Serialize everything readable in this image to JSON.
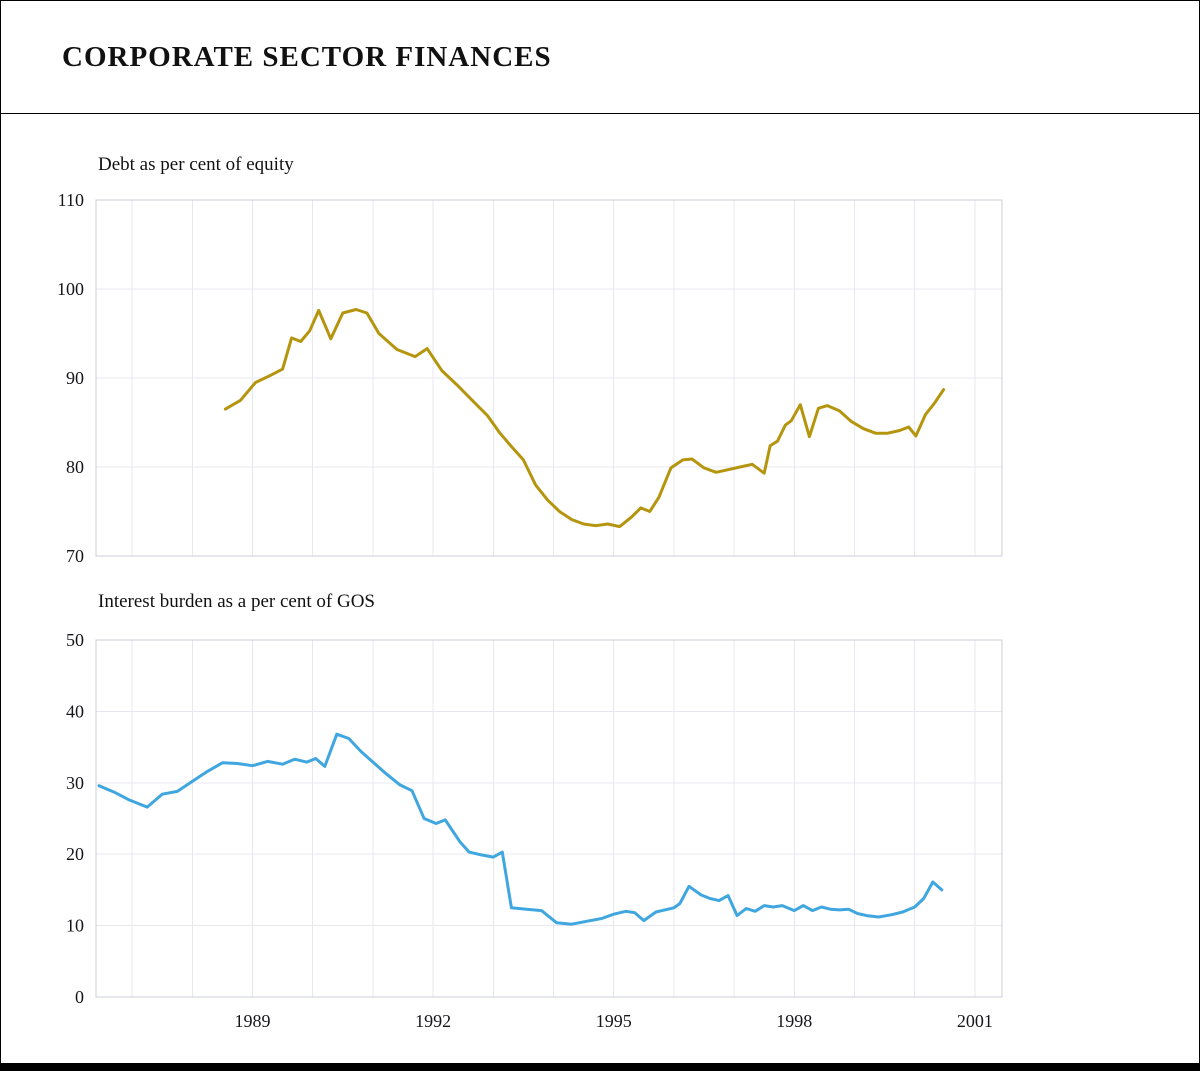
{
  "header": {
    "title": "CORPORATE SECTOR FINANCES"
  },
  "chart_data": [
    {
      "type": "line",
      "title": "Debt as per cent of equity",
      "ylim": [
        70,
        110
      ],
      "yticks": [
        70,
        80,
        90,
        100,
        110
      ],
      "xlim": [
        1986.4,
        2001.45
      ],
      "xticks": [
        1989,
        1992,
        1995,
        1998,
        2001
      ],
      "show_x_labels": false,
      "grid": true,
      "grid_color": "#e7e7f1",
      "frame_color": "#ccccdb",
      "series": [
        {
          "name": "Debt as per cent of equity",
          "color": "#b5950e",
          "points": [
            [
              1988.55,
              86.5
            ],
            [
              1988.8,
              87.5
            ],
            [
              1989.05,
              89.5
            ],
            [
              1989.3,
              90.3
            ],
            [
              1989.5,
              91.0
            ],
            [
              1989.65,
              94.5
            ],
            [
              1989.8,
              94.1
            ],
            [
              1989.95,
              95.3
            ],
            [
              1990.1,
              97.6
            ],
            [
              1990.3,
              94.4
            ],
            [
              1990.5,
              97.3
            ],
            [
              1990.72,
              97.7
            ],
            [
              1990.9,
              97.3
            ],
            [
              1991.1,
              95.0
            ],
            [
              1991.4,
              93.2
            ],
            [
              1991.7,
              92.4
            ],
            [
              1991.9,
              93.3
            ],
            [
              1992.15,
              90.8
            ],
            [
              1992.4,
              89.2
            ],
            [
              1992.65,
              87.5
            ],
            [
              1992.9,
              85.8
            ],
            [
              1993.1,
              83.9
            ],
            [
              1993.3,
              82.3
            ],
            [
              1993.5,
              80.8
            ],
            [
              1993.7,
              78.0
            ],
            [
              1993.9,
              76.3
            ],
            [
              1994.1,
              75.0
            ],
            [
              1994.3,
              74.1
            ],
            [
              1994.5,
              73.6
            ],
            [
              1994.7,
              73.4
            ],
            [
              1994.9,
              73.6
            ],
            [
              1995.1,
              73.3
            ],
            [
              1995.3,
              74.4
            ],
            [
              1995.45,
              75.4
            ],
            [
              1995.6,
              75.0
            ],
            [
              1995.75,
              76.6
            ],
            [
              1995.95,
              79.9
            ],
            [
              1996.15,
              80.8
            ],
            [
              1996.3,
              80.9
            ],
            [
              1996.5,
              79.9
            ],
            [
              1996.7,
              79.4
            ],
            [
              1996.9,
              79.7
            ],
            [
              1997.1,
              80.0
            ],
            [
              1997.3,
              80.3
            ],
            [
              1997.5,
              79.3
            ],
            [
              1997.6,
              82.4
            ],
            [
              1997.72,
              82.9
            ],
            [
              1997.85,
              84.7
            ],
            [
              1997.95,
              85.2
            ],
            [
              1998.1,
              87.0
            ],
            [
              1998.25,
              83.4
            ],
            [
              1998.4,
              86.6
            ],
            [
              1998.55,
              86.9
            ],
            [
              1998.75,
              86.3
            ],
            [
              1998.95,
              85.1
            ],
            [
              1999.15,
              84.3
            ],
            [
              1999.35,
              83.8
            ],
            [
              1999.55,
              83.8
            ],
            [
              1999.75,
              84.1
            ],
            [
              1999.9,
              84.5
            ],
            [
              2000.02,
              83.5
            ],
            [
              2000.18,
              85.9
            ],
            [
              2000.32,
              87.1
            ],
            [
              2000.48,
              88.7
            ]
          ]
        }
      ]
    },
    {
      "type": "line",
      "title": "Interest burden as a per cent of GOS",
      "ylim": [
        0,
        50
      ],
      "yticks": [
        0,
        10,
        20,
        30,
        40,
        50
      ],
      "xlim": [
        1986.4,
        2001.45
      ],
      "xticks": [
        1989,
        1992,
        1995,
        1998,
        2001
      ],
      "show_x_labels": true,
      "grid": true,
      "grid_color": "#e7e7f1",
      "frame_color": "#ccccdb",
      "series": [
        {
          "name": "Interest burden as a per cent of GOS",
          "color": "#3fa6df",
          "points": [
            [
              1986.45,
              29.6
            ],
            [
              1986.7,
              28.7
            ],
            [
              1986.95,
              27.6
            ],
            [
              1987.25,
              26.6
            ],
            [
              1987.5,
              28.4
            ],
            [
              1987.75,
              28.8
            ],
            [
              1988.0,
              30.2
            ],
            [
              1988.25,
              31.6
            ],
            [
              1988.5,
              32.8
            ],
            [
              1988.75,
              32.7
            ],
            [
              1989.0,
              32.4
            ],
            [
              1989.25,
              33.0
            ],
            [
              1989.5,
              32.6
            ],
            [
              1989.7,
              33.3
            ],
            [
              1989.9,
              32.9
            ],
            [
              1990.05,
              33.4
            ],
            [
              1990.2,
              32.3
            ],
            [
              1990.4,
              36.8
            ],
            [
              1990.6,
              36.2
            ],
            [
              1990.8,
              34.4
            ],
            [
              1991.0,
              32.9
            ],
            [
              1991.2,
              31.4
            ],
            [
              1991.45,
              29.7
            ],
            [
              1991.65,
              28.9
            ],
            [
              1991.85,
              25.0
            ],
            [
              1992.05,
              24.3
            ],
            [
              1992.2,
              24.8
            ],
            [
              1992.45,
              21.7
            ],
            [
              1992.6,
              20.3
            ],
            [
              1992.8,
              19.9
            ],
            [
              1993.0,
              19.6
            ],
            [
              1993.15,
              20.3
            ],
            [
              1993.3,
              12.5
            ],
            [
              1993.55,
              12.3
            ],
            [
              1993.8,
              12.1
            ],
            [
              1994.05,
              10.4
            ],
            [
              1994.3,
              10.2
            ],
            [
              1994.55,
              10.6
            ],
            [
              1994.8,
              11.0
            ],
            [
              1995.0,
              11.6
            ],
            [
              1995.2,
              12.0
            ],
            [
              1995.35,
              11.8
            ],
            [
              1995.5,
              10.7
            ],
            [
              1995.7,
              11.9
            ],
            [
              1995.85,
              12.2
            ],
            [
              1996.0,
              12.5
            ],
            [
              1996.1,
              13.1
            ],
            [
              1996.25,
              15.5
            ],
            [
              1996.45,
              14.3
            ],
            [
              1996.6,
              13.8
            ],
            [
              1996.75,
              13.5
            ],
            [
              1996.9,
              14.2
            ],
            [
              1997.05,
              11.4
            ],
            [
              1997.2,
              12.4
            ],
            [
              1997.35,
              12.0
            ],
            [
              1997.5,
              12.8
            ],
            [
              1997.65,
              12.6
            ],
            [
              1997.8,
              12.8
            ],
            [
              1998.0,
              12.1
            ],
            [
              1998.15,
              12.8
            ],
            [
              1998.3,
              12.1
            ],
            [
              1998.45,
              12.6
            ],
            [
              1998.6,
              12.3
            ],
            [
              1998.75,
              12.2
            ],
            [
              1998.9,
              12.3
            ],
            [
              1999.05,
              11.7
            ],
            [
              1999.2,
              11.4
            ],
            [
              1999.4,
              11.2
            ],
            [
              1999.6,
              11.5
            ],
            [
              1999.8,
              11.9
            ],
            [
              2000.0,
              12.6
            ],
            [
              2000.15,
              13.8
            ],
            [
              2000.3,
              16.1
            ],
            [
              2000.45,
              15.0
            ]
          ]
        }
      ]
    }
  ]
}
